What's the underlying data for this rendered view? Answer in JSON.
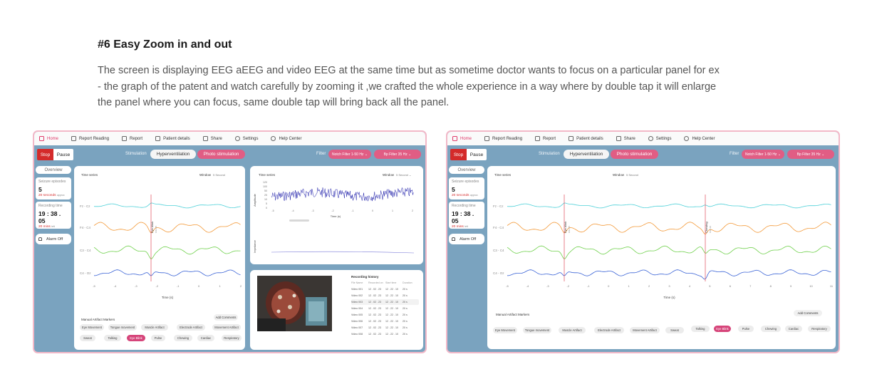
{
  "heading": "#6 Easy Zoom in and out",
  "description": "The screen is displaying EEG aEEG and video EEG at the same time but as sometime doctor wants to focus on a particular panel for ex - the graph of the patent and watch carefully by zooming it ,we crafted the whole experience in a way where by double tap it will enlarge the panel where you can focus, same double tap will bring back all the panel.",
  "nav": {
    "home": "Home",
    "report_reading": "Report Reading",
    "report": "Report",
    "patient_details": "Patient details",
    "share": "Share",
    "settings": "Settings",
    "help_center": "Help Center"
  },
  "controls": {
    "stop": "Stop",
    "pause": "Pause",
    "stimulation_label": "Stimulation",
    "hyperventilation": "Hyperventilation",
    "photo_stimulation": "Photo stimulation",
    "filter_label": "Filter",
    "notch_filter": "Notch Filter 1-50 Hz ⌄",
    "bp_filter": "Bp Filter 35 Hz ⌄"
  },
  "sidebar": {
    "overview": "Overview",
    "seizure_label": "Seizure episodes",
    "seizure_value": "5",
    "seizure_sub": "20 seconds",
    "seizure_sub2": "approx",
    "recording_label": "Recording time",
    "recording_value": "19 : 38 . 05",
    "recording_sub": "20 mins",
    "recording_sub2": "left",
    "alarm": "Alarm Off"
  },
  "eeg": {
    "title": "Time series",
    "window_label": "Window",
    "window_value": "5 Second",
    "channels": [
      "Fz - Cz",
      "F4 - C4",
      "C3 - C4",
      "C4 - Oz"
    ],
    "x_ticks_small": [
      "-5",
      "-4",
      "-3",
      "-2",
      "-1",
      "0",
      "1",
      "2"
    ],
    "x_ticks_large": [
      "-5",
      "-4",
      "-3",
      "-2",
      "-1",
      "0",
      "1",
      "2",
      "3",
      "4",
      "5",
      "6",
      "7",
      "8",
      "9",
      "10",
      "11"
    ],
    "x_label": "Time (s)",
    "marker_eye": "Eye blink",
    "marker_eye_sub": "0:01:25",
    "marker_chew": "Chewing",
    "marker_chew_sub": "0:03:10"
  },
  "artifacts": {
    "title": "Manual Artifact Markers",
    "add_comments": "Add Comments",
    "chips": [
      "Eye Movement",
      "Tongue movement",
      "Muscle Artifact",
      "Electrode Artifact",
      "Movement Artifact",
      "Sweat",
      "Talking",
      "Eye Blink",
      "Pulse",
      "Chewing",
      "Cardiac",
      "Respiratory"
    ],
    "selected": "Eye Blink"
  },
  "aeeg": {
    "title": "Time series",
    "window_label": "Window",
    "window_value": "5 Second ⌄",
    "y_label": "Amplitude",
    "y_ticks": [
      "120",
      "100",
      "50",
      "25",
      "10",
      "5",
      "0"
    ],
    "x_ticks": [
      "-5",
      "-4",
      "-3",
      "-2",
      "-1",
      "0",
      "1",
      "2"
    ],
    "x_label": "Time (s)",
    "impedance": "Impedance"
  },
  "history": {
    "title": "Recording history",
    "headers": [
      "File Name",
      "Recorded on",
      "Start time",
      "Duration"
    ],
    "rows": [
      [
        "Video 001",
        "12 . 02 . 23",
        "12 . 22 . 10",
        "20 s"
      ],
      [
        "Video 002",
        "12 . 02 . 23",
        "12 . 22 . 10",
        "20 s"
      ],
      [
        "Video 003",
        "12 . 02 . 23",
        "12 . 22 . 10",
        "20 s"
      ],
      [
        "Video 004",
        "12 . 02 . 23",
        "12 . 22 . 10",
        "20 s"
      ],
      [
        "Video 005",
        "12 . 02 . 23",
        "12 . 22 . 10",
        "20 s"
      ],
      [
        "Video 006",
        "12 . 02 . 23",
        "12 . 22 . 10",
        "20 s"
      ],
      [
        "Video 007",
        "12 . 02 . 23",
        "12 . 22 . 10",
        "20 s"
      ],
      [
        "Video 008",
        "12 . 02 . 23",
        "12 . 22 . 10",
        "20 s"
      ]
    ]
  },
  "colors": {
    "accent": "#e15d84",
    "stop": "#d42a2a",
    "background": "#7aa3bf",
    "ch1": "#4dd0d8",
    "ch2": "#f39a3a",
    "ch3": "#6ed04a",
    "ch4": "#3a63d6",
    "aeeg": "#1a1aa8"
  }
}
